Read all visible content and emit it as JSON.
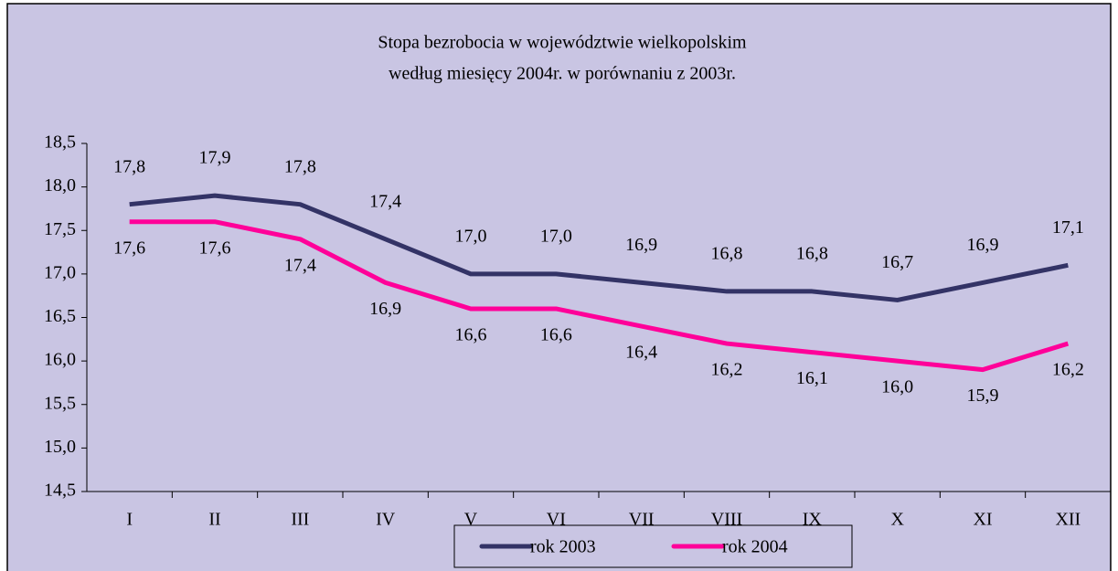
{
  "chart_data": {
    "type": "line",
    "title": [
      "Stopa bezrobocia w województwie wielkopolskim",
      "według miesięcy 2004r. w porównaniu z 2003r."
    ],
    "categories": [
      "I",
      "II",
      "III",
      "IV",
      "V",
      "VI",
      "VII",
      "VIII",
      "IX",
      "X",
      "XI",
      "XII"
    ],
    "series": [
      {
        "name": "rok 2003",
        "color": "#333366",
        "values": [
          17.8,
          17.9,
          17.8,
          17.4,
          17.0,
          17.0,
          16.9,
          16.8,
          16.8,
          16.7,
          16.9,
          17.1
        ],
        "value_labels": [
          "17,8",
          "17,9",
          "17,8",
          "17,4",
          "17,0",
          "17,0",
          "16,9",
          "16,8",
          "16,8",
          "16,7",
          "16,9",
          "17,1"
        ]
      },
      {
        "name": "rok 2004",
        "color": "#ff0099",
        "values": [
          17.6,
          17.6,
          17.4,
          16.9,
          16.6,
          16.6,
          16.4,
          16.2,
          16.1,
          16.0,
          15.9,
          16.2
        ],
        "value_labels": [
          "17,6",
          "17,6",
          "17,4",
          "16,9",
          "16,6",
          "16,6",
          "16,4",
          "16,2",
          "16,1",
          "16,0",
          "15,9",
          "16,2"
        ]
      }
    ],
    "ylim": [
      14.5,
      18.5
    ],
    "yticks": [
      {
        "value": 14.5,
        "label": "14,5"
      },
      {
        "value": 15.0,
        "label": "15,0"
      },
      {
        "value": 15.5,
        "label": "15,5"
      },
      {
        "value": 16.0,
        "label": "16,0"
      },
      {
        "value": 16.5,
        "label": "16,5"
      },
      {
        "value": 17.0,
        "label": "17,0"
      },
      {
        "value": 17.5,
        "label": "17,5"
      },
      {
        "value": 18.0,
        "label": "18,0"
      },
      {
        "value": 18.5,
        "label": "18,5"
      }
    ],
    "grid": false,
    "legend": "bottom"
  }
}
